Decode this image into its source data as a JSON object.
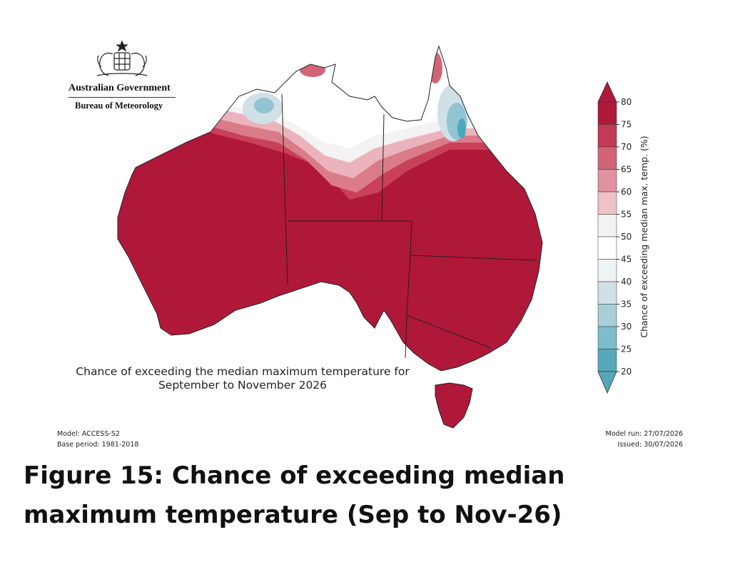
{
  "logo": {
    "line1": "Australian Government",
    "line2": "Bureau of Meteorology",
    "icon": "coat-of-arms-icon"
  },
  "map": {
    "title_line1": "Chance of exceeding the median maximum temperature for",
    "title_line2": "September to November 2026",
    "colors": {
      "hot": "#b0183a",
      "warm_1": "#c8405a",
      "warm_2": "#da7b89",
      "warm_3": "#ebb4bc",
      "neutral": "#f2f2f2",
      "cool_1": "#cfe0e6",
      "cool_2": "#92c4d1",
      "cool_3": "#4ea8bc"
    }
  },
  "colorbar": {
    "label": "Chance of exceeding median max. temp. (%)",
    "ticks": [
      "80",
      "75",
      "70",
      "65",
      "60",
      "55",
      "50",
      "45",
      "40",
      "35",
      "30",
      "25",
      "20"
    ],
    "colors": [
      "#b0183a",
      "#c23a55",
      "#d16576",
      "#e0939f",
      "#edc3c9",
      "#f2f2f2",
      "#ffffff",
      "#eef4f6",
      "#cfe0e6",
      "#a8cfd9",
      "#7dbccb",
      "#55a8bc"
    ]
  },
  "meta": {
    "model": "Model: ACCESS-S2",
    "base_period": "Base period: 1981-2018",
    "model_run": "Model run: 27/07/2026",
    "issued": "Issued: 30/07/2026"
  },
  "caption": {
    "line1": "Figure 15: Chance of exceeding median",
    "line2": "maximum temperature (Sep to Nov-26)"
  }
}
